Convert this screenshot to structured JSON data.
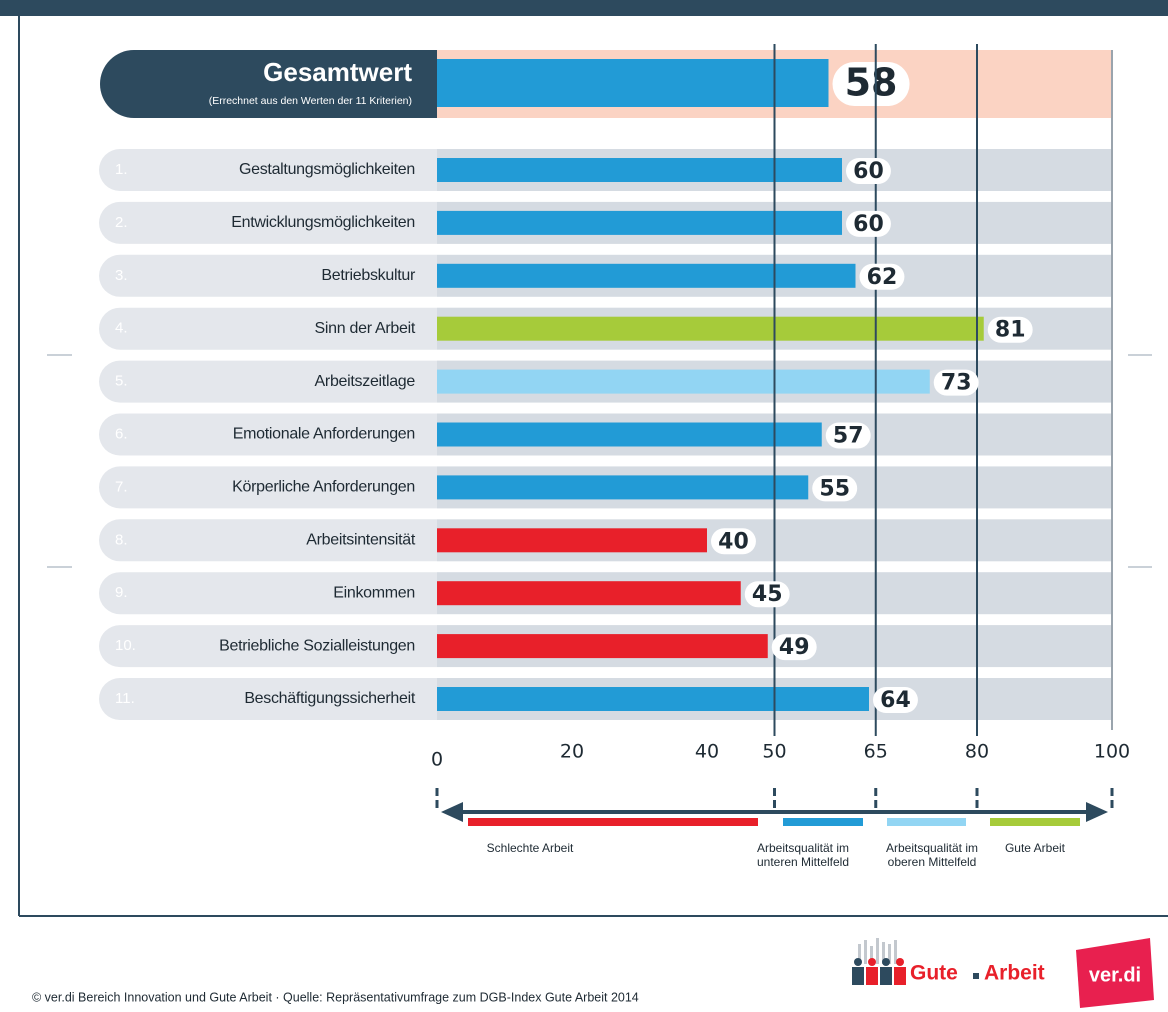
{
  "chart_data": {
    "type": "bar",
    "total": {
      "label": "Gesamtwert",
      "sublabel": "(Errechnet aus den Werten der 11 Kriterien)",
      "value": 58,
      "color": "#229bd6"
    },
    "numbers": [
      "1.",
      "2.",
      "3.",
      "4.",
      "5.",
      "6.",
      "7.",
      "8.",
      "9.",
      "10.",
      "11."
    ],
    "categories": [
      "Gestaltungsmöglichkeiten",
      "Entwicklungsmöglichkeiten",
      "Betriebskultur",
      "Sinn der Arbeit",
      "Arbeitszeitlage",
      "Emotionale Anforderungen",
      "Körperliche Anforderungen",
      "Arbeitsintensität",
      "Einkommen",
      "Betriebliche Sozialleistungen",
      "Beschäftigungssicherheit"
    ],
    "values": [
      60,
      60,
      62,
      81,
      73,
      57,
      55,
      40,
      45,
      49,
      64
    ],
    "colors": [
      "#229bd6",
      "#229bd6",
      "#229bd6",
      "#a6cb3a",
      "#92d5f3",
      "#229bd6",
      "#229bd6",
      "#e8202a",
      "#e8202a",
      "#e8202a",
      "#229bd6"
    ],
    "xlim": [
      0,
      100
    ],
    "xticks": [
      0,
      20,
      40,
      50,
      65,
      80,
      100
    ],
    "grid_lines": [
      50,
      65,
      80,
      100
    ],
    "tick_marks": [
      0,
      50,
      65,
      80,
      100
    ],
    "legend": [
      {
        "lines": [
          "Schlechte Arbeit"
        ],
        "color": "#e8202a"
      },
      {
        "lines": [
          "Arbeitsqualität im",
          "unteren Mittelfeld"
        ],
        "color": "#229bd6"
      },
      {
        "lines": [
          "Arbeitsqualität im",
          "oberen Mittelfeld"
        ],
        "color": "#92d5f3"
      },
      {
        "lines": [
          "Gute Arbeit"
        ],
        "color": "#a6cb3a"
      }
    ],
    "footer": "© ver.di Bereich Innovation und Gute Arbeit · Quelle: Repräsentativumfrage zum DGB-Index Gute Arbeit 2014",
    "logo_left": [
      "Gute",
      "Arbeit"
    ],
    "logo_right": "ver.di"
  }
}
